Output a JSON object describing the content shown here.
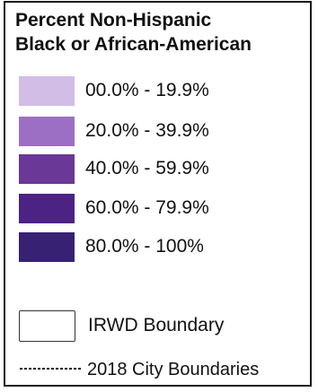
{
  "legend": {
    "title_line1": "Percent Non-Hispanic",
    "title_line2": "Black or African-American",
    "classes": [
      {
        "label": "00.0% - 19.9%",
        "color": "#d2bde6"
      },
      {
        "label": "20.0% - 39.9%",
        "color": "#9d6fc4"
      },
      {
        "label": "40.0% - 59.9%",
        "color": "#6a3896"
      },
      {
        "label": "60.0% - 79.9%",
        "color": "#4c2384"
      },
      {
        "label": "80.0% - 100%",
        "color": "#372173"
      }
    ],
    "boundary": {
      "label": "IRWD Boundary"
    },
    "city_boundaries": {
      "label": "2018 City Boundaries"
    }
  }
}
